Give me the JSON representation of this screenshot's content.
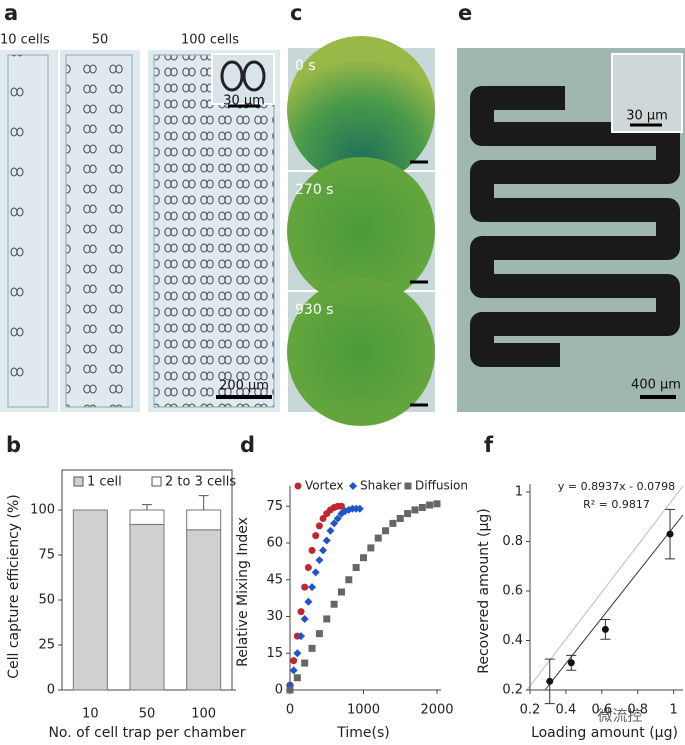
{
  "images": {
    "a": {
      "letter": "a",
      "labels": [
        "10 cells",
        "50",
        "100 cells"
      ],
      "inset_scale": "30 µm",
      "scale": "200 µm"
    },
    "c": {
      "letter": "c",
      "times": [
        "0 s",
        "270 s",
        "930 s"
      ]
    },
    "e": {
      "letter": "e",
      "inset_scale": "30 µm",
      "scale": "400 µm"
    }
  },
  "chart_data": [
    {
      "type": "bar",
      "panel": "b",
      "ylabel": "Cell capture efficiency (%)",
      "xlabel": "No. of cell trap per chamber",
      "stacked": true,
      "categories": [
        "10",
        "50",
        "100"
      ],
      "series": [
        {
          "name": "1 cell",
          "color": "#d0d0d0",
          "values": [
            100,
            92,
            89
          ]
        },
        {
          "name": "2 to 3 cells",
          "color": "#ffffff",
          "values": [
            0,
            8,
            11
          ],
          "errors": [
            0,
            3,
            8
          ]
        }
      ],
      "ylim": [
        0,
        115
      ],
      "yticks": [
        0,
        25,
        50,
        75,
        100
      ],
      "legend": "top"
    },
    {
      "type": "scatter",
      "panel": "d",
      "ylabel": "Relative Mixing Index",
      "xlabel": "Time(s)",
      "series": [
        {
          "name": "Vortex",
          "color": "#c0272d",
          "marker": "circle",
          "x": [
            0,
            50,
            100,
            150,
            200,
            250,
            300,
            350,
            400,
            450,
            500,
            550,
            600,
            650,
            700
          ],
          "values": [
            2,
            12,
            22,
            32,
            42,
            50,
            57,
            63,
            67,
            70,
            72,
            73.5,
            74.5,
            75,
            75
          ]
        },
        {
          "name": "Shaker",
          "color": "#2154c9",
          "marker": "diamond",
          "x": [
            0,
            50,
            100,
            150,
            200,
            250,
            300,
            350,
            400,
            450,
            500,
            550,
            600,
            650,
            700,
            750,
            800,
            850,
            900,
            950
          ],
          "values": [
            2,
            8,
            15,
            22,
            29,
            36,
            42,
            48,
            53,
            57,
            61,
            65,
            68,
            70,
            72,
            73,
            73.5,
            74,
            74,
            74
          ]
        },
        {
          "name": "Diffusion",
          "color": "#666666",
          "marker": "square",
          "x": [
            0,
            100,
            200,
            300,
            400,
            500,
            600,
            700,
            800,
            900,
            1000,
            1100,
            1200,
            1300,
            1400,
            1500,
            1600,
            1700,
            1800,
            1900,
            2000
          ],
          "values": [
            0,
            5,
            11,
            17,
            23,
            29,
            35,
            40,
            45,
            50,
            54,
            58,
            62,
            65,
            68,
            70,
            72,
            73.5,
            74.5,
            75.5,
            76
          ]
        }
      ],
      "xlim": [
        0,
        2000
      ],
      "xticks": [
        0,
        1000,
        2000
      ],
      "ylim": [
        0,
        80
      ],
      "yticks": [
        0,
        15,
        30,
        45,
        60,
        75
      ],
      "legend": "top"
    },
    {
      "type": "scatter",
      "panel": "f",
      "ylabel": "Recovered amount (µg)",
      "xlabel": "Loading amount (µg)",
      "annotations": [
        "y = 0.8937x - 0.0798",
        "R² = 0.9817"
      ],
      "x": [
        0.31,
        0.43,
        0.62,
        0.98
      ],
      "series": [
        {
          "name": null,
          "color": "#111111",
          "marker": "circle",
          "values": [
            0.235,
            0.31,
            0.445,
            0.83
          ],
          "errors": [
            0.09,
            0.03,
            0.04,
            0.1
          ]
        }
      ],
      "xlim": [
        0.2,
        1.03
      ],
      "xticks": [
        0.2,
        0.4,
        0.6,
        0.8,
        1
      ],
      "ylim": [
        0.2,
        1.0
      ],
      "yticks": [
        0.2,
        0.4,
        0.6,
        0.8,
        1
      ]
    }
  ],
  "watermark": "微流控"
}
